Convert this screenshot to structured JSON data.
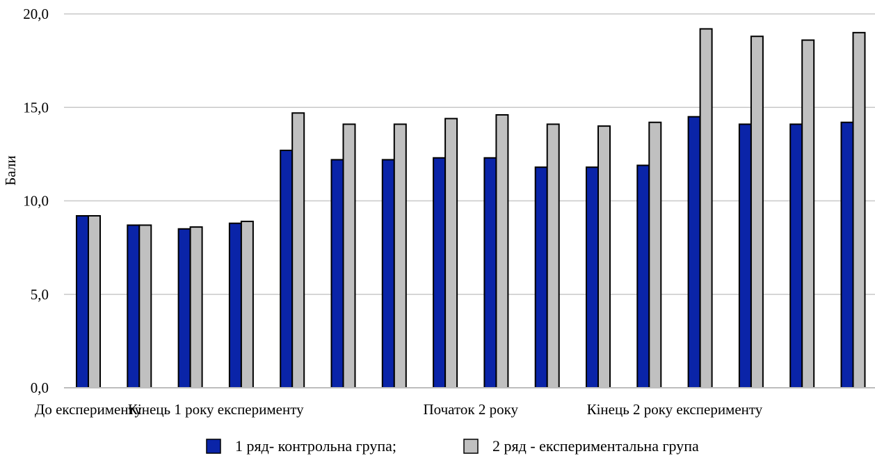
{
  "chart_data": {
    "type": "bar",
    "ylabel": "Бали",
    "xlabel": "",
    "ylim": [
      0,
      20
    ],
    "yticks": [
      "0,0",
      "5,0",
      "10,0",
      "15,0",
      "20,0"
    ],
    "ytick_values": [
      0,
      5,
      10,
      15,
      20
    ],
    "grid": true,
    "legend_position": "bottom",
    "category_labels": [
      "До експерименту",
      "Кінець 1 року експерименту",
      "Початок 2 року",
      "Кінець 2 року експерименту"
    ],
    "label_anchor_index": [
      0,
      2.5,
      7.5,
      11.5
    ],
    "x_count": 16,
    "series": [
      {
        "name": "1 ряд- контрольна група;",
        "color": "#0a24a8",
        "values": [
          9.2,
          8.7,
          8.5,
          8.8,
          12.7,
          12.2,
          12.2,
          12.3,
          12.3,
          11.8,
          11.8,
          11.9,
          14.5,
          14.1,
          14.1,
          14.2
        ]
      },
      {
        "name": "2 ряд - експериментальна  група",
        "color": "#c0c0c0",
        "values": [
          9.2,
          8.7,
          8.6,
          8.9,
          14.7,
          14.1,
          14.1,
          14.4,
          14.6,
          14.1,
          14.0,
          14.2,
          19.2,
          18.8,
          18.6,
          19.0
        ]
      }
    ]
  }
}
